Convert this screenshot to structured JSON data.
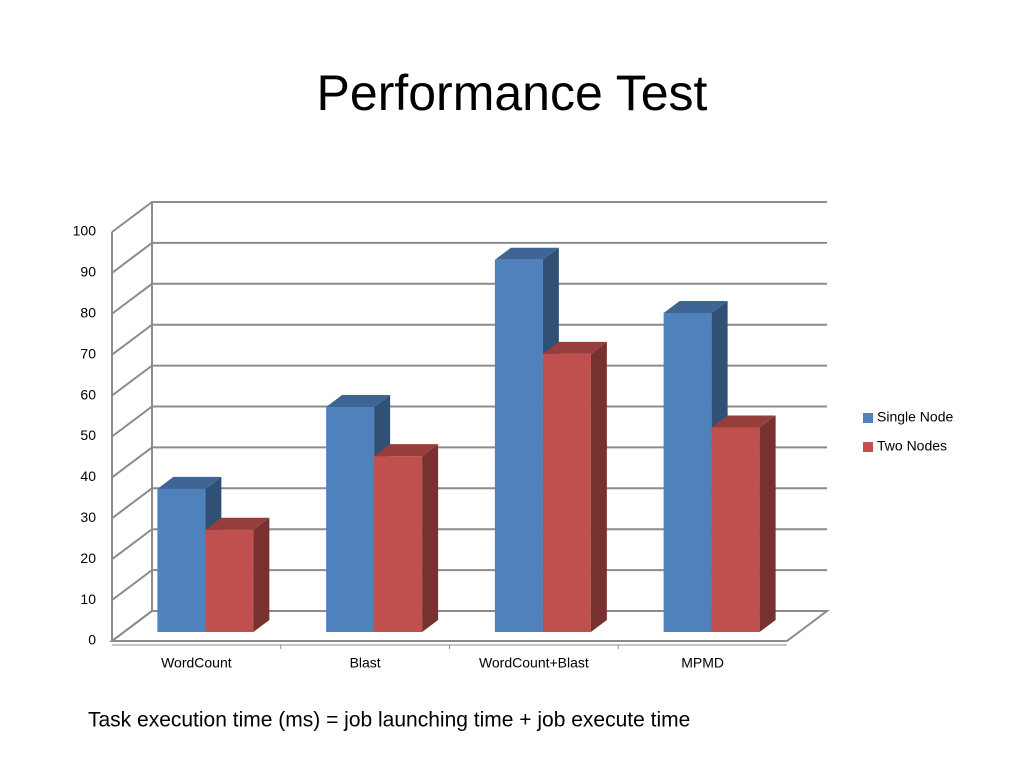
{
  "chart_data": {
    "type": "bar3d",
    "title": "Performance Test",
    "caption": "Task execution time (ms) = job launching time + job execute time",
    "categories": [
      "WordCount",
      "Blast",
      "WordCount+Blast",
      "MPMD"
    ],
    "series": [
      {
        "name": "Single Node",
        "color": "#4f81bd",
        "values": [
          35,
          55,
          91,
          78
        ]
      },
      {
        "name": "Two Nodes",
        "color": "#c0504d",
        "values": [
          25,
          43,
          68,
          50
        ]
      }
    ],
    "ylim": [
      0,
      100
    ],
    "yticks": [
      0,
      10,
      20,
      30,
      40,
      50,
      60,
      70,
      80,
      90,
      100
    ],
    "grid": true,
    "legend": "right"
  }
}
